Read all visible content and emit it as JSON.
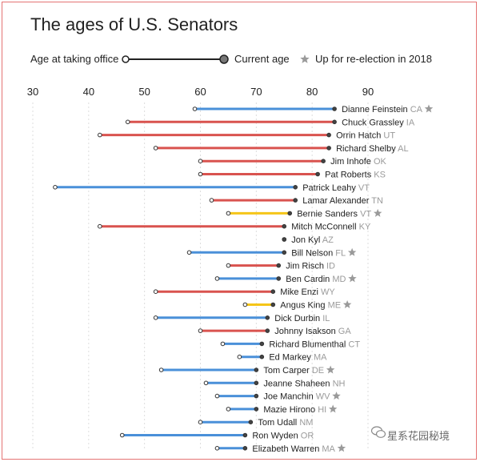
{
  "title": "The ages of U.S. Senators",
  "legend": {
    "start_label": "Age at taking office",
    "end_label": "Current age",
    "star_label": "Up for re-election in 2018"
  },
  "watermark": "星系花园秘境",
  "colors": {
    "democrat": "#4a90d9",
    "republican": "#d9534f",
    "independent": "#f5c518",
    "state_text": "#9a9a9a",
    "star": "#9a9a9a",
    "grid": "#dddddd"
  },
  "chart_data": {
    "type": "dumbbell",
    "title": "The ages of U.S. Senators",
    "xlabel": "",
    "ylabel": "",
    "xlim": [
      30,
      90
    ],
    "xticks": [
      30,
      40,
      50,
      60,
      70,
      80,
      90
    ],
    "legend": [
      "Age at taking office",
      "Current age",
      "Up for re-election in 2018"
    ],
    "series": [
      {
        "name": "Dianne Feinstein",
        "state": "CA",
        "party": "D",
        "start": 59,
        "end": 84,
        "reelection": true
      },
      {
        "name": "Chuck Grassley",
        "state": "IA",
        "party": "R",
        "start": 47,
        "end": 84,
        "reelection": false
      },
      {
        "name": "Orrin Hatch",
        "state": "UT",
        "party": "R",
        "start": 42,
        "end": 83,
        "reelection": false
      },
      {
        "name": "Richard Shelby",
        "state": "AL",
        "party": "R",
        "start": 52,
        "end": 83,
        "reelection": false
      },
      {
        "name": "Jim Inhofe",
        "state": "OK",
        "party": "R",
        "start": 60,
        "end": 82,
        "reelection": false
      },
      {
        "name": "Pat Roberts",
        "state": "KS",
        "party": "R",
        "start": 60,
        "end": 81,
        "reelection": false
      },
      {
        "name": "Patrick Leahy",
        "state": "VT",
        "party": "D",
        "start": 34,
        "end": 77,
        "reelection": false
      },
      {
        "name": "Lamar Alexander",
        "state": "TN",
        "party": "R",
        "start": 62,
        "end": 77,
        "reelection": false
      },
      {
        "name": "Bernie Sanders",
        "state": "VT",
        "party": "I",
        "start": 65,
        "end": 76,
        "reelection": true
      },
      {
        "name": "Mitch McConnell",
        "state": "KY",
        "party": "R",
        "start": 42,
        "end": 75,
        "reelection": false
      },
      {
        "name": "Jon Kyl",
        "state": "AZ",
        "party": "R",
        "start": 75,
        "end": 75,
        "reelection": false
      },
      {
        "name": "Bill Nelson",
        "state": "FL",
        "party": "D",
        "start": 58,
        "end": 75,
        "reelection": true
      },
      {
        "name": "Jim Risch",
        "state": "ID",
        "party": "R",
        "start": 65,
        "end": 74,
        "reelection": false
      },
      {
        "name": "Ben Cardin",
        "state": "MD",
        "party": "D",
        "start": 63,
        "end": 74,
        "reelection": true
      },
      {
        "name": "Mike Enzi",
        "state": "WY",
        "party": "R",
        "start": 52,
        "end": 73,
        "reelection": false
      },
      {
        "name": "Angus King",
        "state": "ME",
        "party": "I",
        "start": 68,
        "end": 73,
        "reelection": true
      },
      {
        "name": "Dick Durbin",
        "state": "IL",
        "party": "D",
        "start": 52,
        "end": 72,
        "reelection": false
      },
      {
        "name": "Johnny Isakson",
        "state": "GA",
        "party": "R",
        "start": 60,
        "end": 72,
        "reelection": false
      },
      {
        "name": "Richard Blumenthal",
        "state": "CT",
        "party": "D",
        "start": 64,
        "end": 71,
        "reelection": false
      },
      {
        "name": "Ed Markey",
        "state": "MA",
        "party": "D",
        "start": 67,
        "end": 71,
        "reelection": false
      },
      {
        "name": "Tom Carper",
        "state": "DE",
        "party": "D",
        "start": 53,
        "end": 70,
        "reelection": true
      },
      {
        "name": "Jeanne Shaheen",
        "state": "NH",
        "party": "D",
        "start": 61,
        "end": 70,
        "reelection": false
      },
      {
        "name": "Joe Manchin",
        "state": "WV",
        "party": "D",
        "start": 63,
        "end": 70,
        "reelection": true
      },
      {
        "name": "Mazie Hirono",
        "state": "HI",
        "party": "D",
        "start": 65,
        "end": 70,
        "reelection": true
      },
      {
        "name": "Tom Udall",
        "state": "NM",
        "party": "D",
        "start": 60,
        "end": 69,
        "reelection": false
      },
      {
        "name": "Ron Wyden",
        "state": "OR",
        "party": "D",
        "start": 46,
        "end": 68,
        "reelection": false
      },
      {
        "name": "Elizabeth Warren",
        "state": "MA",
        "party": "D",
        "start": 63,
        "end": 68,
        "reelection": true
      }
    ]
  }
}
